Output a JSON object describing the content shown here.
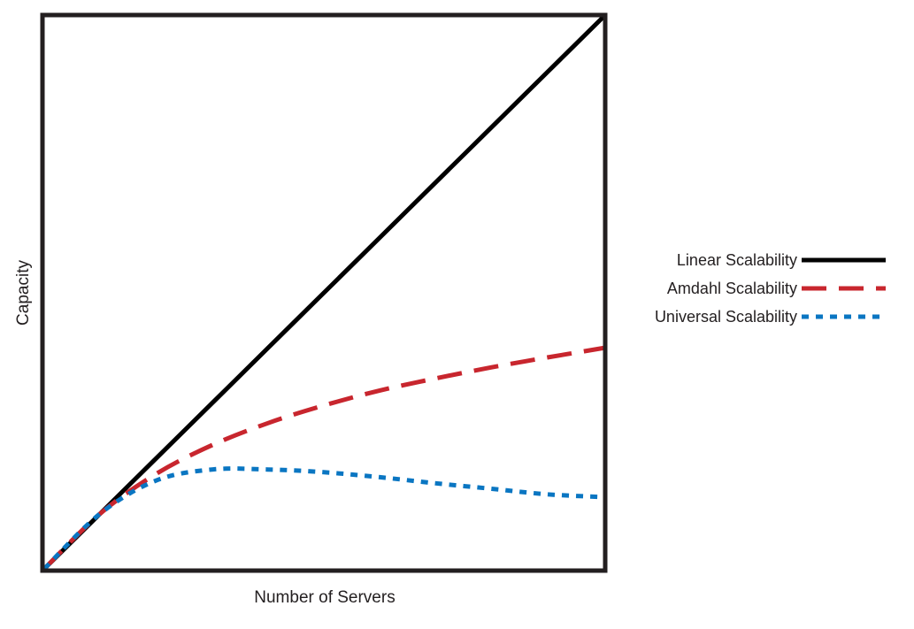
{
  "chart_data": {
    "type": "line",
    "title": "",
    "xlabel": "Number of Servers",
    "ylabel": "Capacity",
    "xlim": [
      0,
      10
    ],
    "ylim": [
      0,
      10
    ],
    "grid": false,
    "tick_labels": false,
    "legend_position": "right",
    "series": [
      {
        "name": "Linear Scalability",
        "color": "#000000",
        "style": "solid",
        "x": [
          0,
          1,
          2,
          3,
          4,
          5,
          6,
          7,
          8,
          9,
          10
        ],
        "y": [
          0,
          1,
          2,
          3,
          4,
          5,
          6,
          7,
          8,
          9,
          10
        ]
      },
      {
        "name": "Amdahl Scalability",
        "color": "#c8262e",
        "style": "dashed",
        "x": [
          0,
          1,
          2,
          3,
          4,
          5,
          6,
          7,
          8,
          9,
          10
        ],
        "y": [
          0,
          1.0,
          1.72,
          2.24,
          2.64,
          2.96,
          3.23,
          3.45,
          3.65,
          3.83,
          4.0
        ]
      },
      {
        "name": "Universal Scalability",
        "color": "#0a76c2",
        "style": "dotted",
        "x": [
          0,
          1,
          2,
          3,
          4,
          5,
          6,
          7,
          8,
          9,
          10
        ],
        "y": [
          0,
          1.0,
          1.6,
          1.8,
          1.8,
          1.75,
          1.66,
          1.55,
          1.45,
          1.35,
          1.3
        ]
      }
    ]
  }
}
